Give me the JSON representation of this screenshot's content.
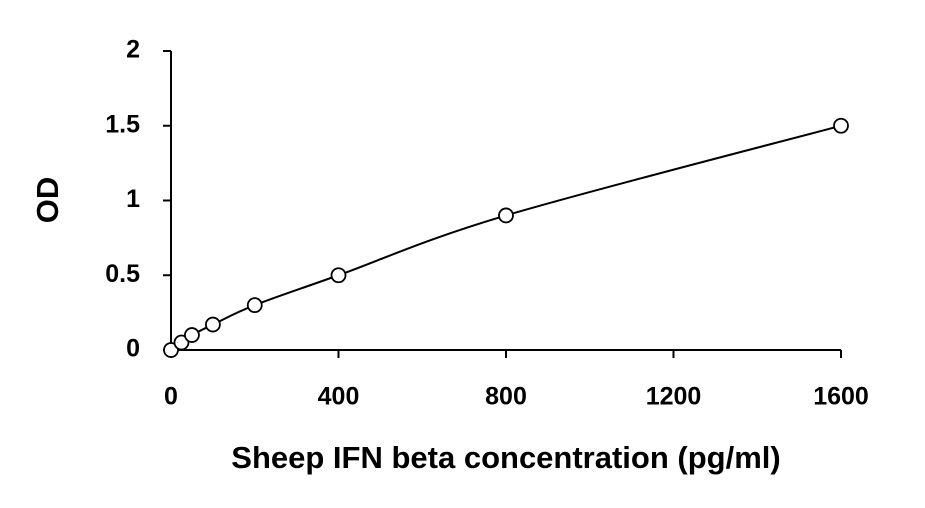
{
  "chart_data": {
    "type": "scatter",
    "x_label": "Sheep IFN beta concentration (pg/ml)",
    "y_label": "OD",
    "x": [
      0,
      25,
      50,
      100,
      200,
      400,
      800,
      1600
    ],
    "values": [
      0,
      0.05,
      0.1,
      0.17,
      0.3,
      0.5,
      0.9,
      1.5
    ],
    "color": "#000000",
    "fit_line": true,
    "xlim": [
      0,
      1600
    ],
    "xticks": [
      0,
      400,
      800,
      1200,
      1600
    ],
    "ylim": [
      0,
      2
    ],
    "yticks": [
      0,
      0.5,
      1,
      1.5,
      2
    ]
  }
}
